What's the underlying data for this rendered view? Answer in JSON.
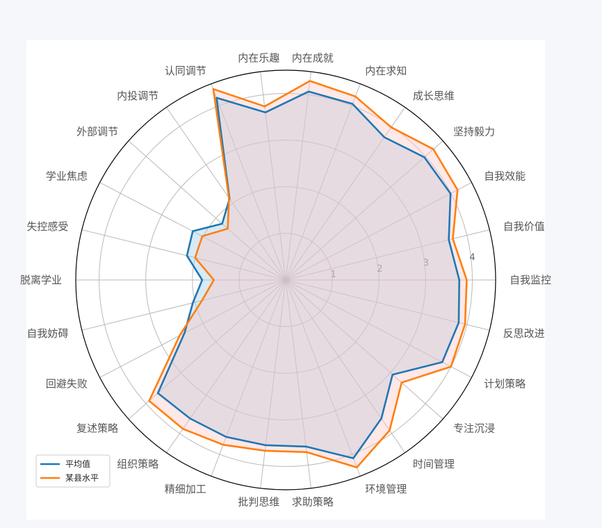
{
  "chart_data": {
    "type": "radar",
    "title": "",
    "legend_position": "lower-left",
    "grid": true,
    "rlim": [
      0,
      4.5
    ],
    "r_ticks": [
      1,
      2,
      3,
      4
    ],
    "categories": [
      "自我监控",
      "自我价值",
      "自我效能",
      "坚持毅力",
      "成长思维",
      "内在求知",
      "内在成就",
      "内在乐趣",
      "认同调节",
      "内投调节",
      "外部调节",
      "学业焦虑",
      "失控感受",
      "脱离学业",
      "自我妨碍",
      "回避失败",
      "复述策略",
      "组织策略",
      "精细加工",
      "批判思维",
      "求助策略",
      "环境管理",
      "时间管理",
      "专注沉浸",
      "计划策略",
      "反思改进"
    ],
    "series": [
      {
        "name": "平均值",
        "color": "#1f77b4",
        "values": [
          3.72,
          3.6,
          3.99,
          3.97,
          3.72,
          4.04,
          4.07,
          3.62,
          4.18,
          2.12,
          1.82,
          2.25,
          2.18,
          1.79,
          2.05,
          2.45,
          3.66,
          3.61,
          3.6,
          3.57,
          3.6,
          4.09,
          3.61,
          3.06,
          3.79,
          3.82
        ],
        "fill_color": "#9ecae1",
        "fill_opacity": 0.4
      },
      {
        "name": "某县水平",
        "color": "#ff7f0e",
        "values": [
          3.88,
          3.69,
          4.16,
          4.23,
          3.98,
          4.21,
          4.3,
          3.75,
          4.38,
          2.14,
          1.66,
          2.02,
          2.0,
          1.54,
          1.85,
          2.57,
          3.91,
          3.88,
          3.78,
          3.69,
          3.72,
          4.3,
          3.92,
          3.32,
          4.0,
          3.96
        ],
        "fill_color": "#fdc6c6",
        "fill_opacity": 0.4
      }
    ]
  }
}
